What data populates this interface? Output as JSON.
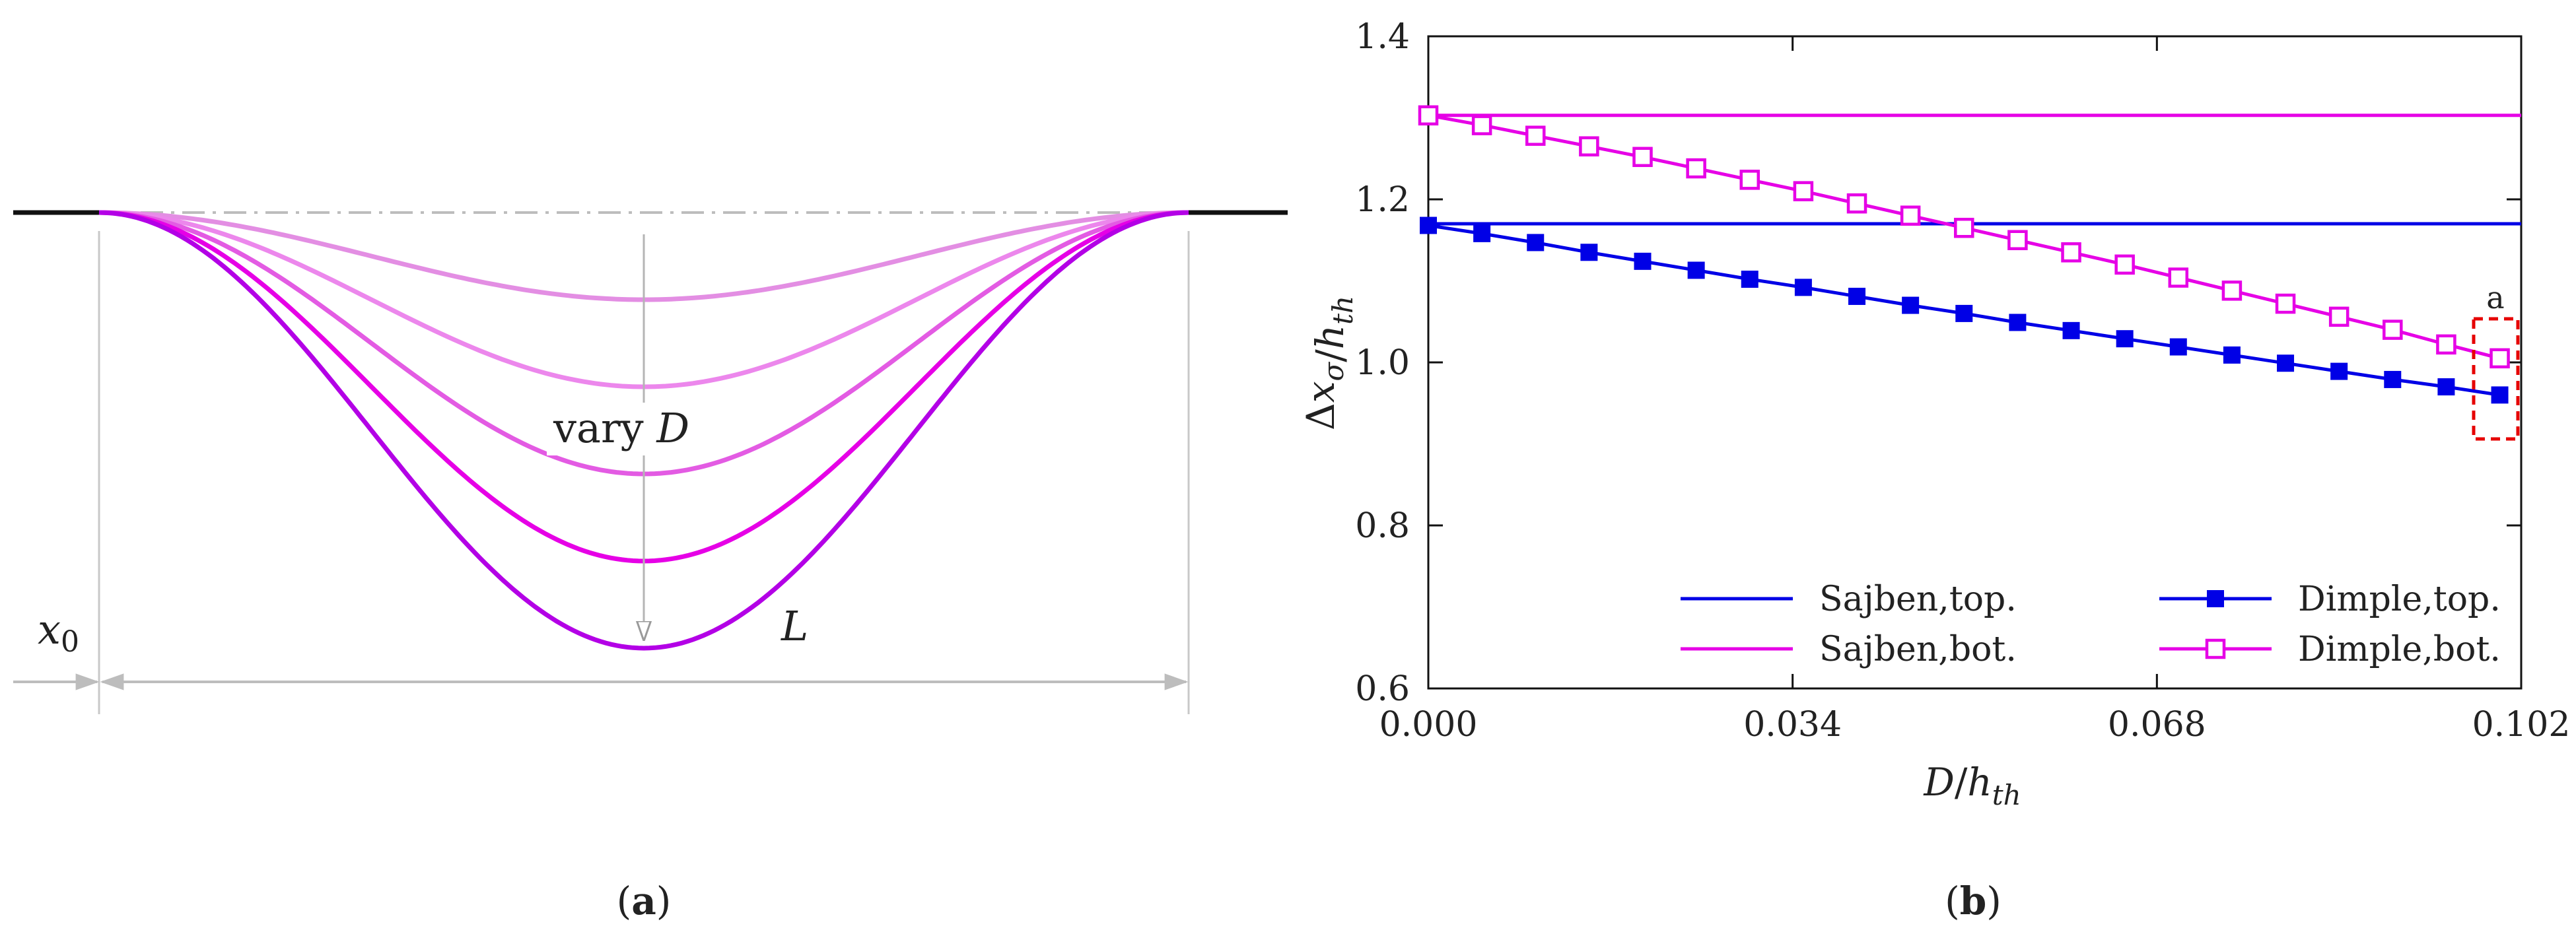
{
  "panel_a": {
    "caption_open": "(",
    "caption_letter": "a",
    "caption_close": ")",
    "label_x0": "x",
    "label_x0_sub": "0",
    "label_vary": "vary ",
    "label_vary_var": "D",
    "label_L": "L",
    "profile_colors": [
      "#e38ee3",
      "#ec87ec",
      "#e35be3",
      "#e600e6",
      "#b300e6"
    ],
    "profile_depths": [
      0.2,
      0.4,
      0.6,
      0.8,
      1.0
    ]
  },
  "panel_b": {
    "caption_open": "(",
    "caption_letter": "b",
    "caption_close": ")",
    "annotation": "a"
  },
  "chart_data": {
    "type": "line",
    "title": "",
    "xlabel": "D/h_th",
    "ylabel": "Δx_σ/h_th",
    "xlim": [
      0.0,
      0.102
    ],
    "ylim": [
      0.6,
      1.4
    ],
    "xticks": [
      0.0,
      0.034,
      0.068,
      0.102
    ],
    "xtick_labels": [
      "0.000",
      "0.034",
      "0.068",
      "0.102"
    ],
    "yticks": [
      0.6,
      0.8,
      1.0,
      1.2,
      1.4
    ],
    "ytick_labels": [
      "0.6",
      "0.8",
      "1.0",
      "1.2",
      "1.4"
    ],
    "grid": false,
    "legend_position": "bottom",
    "series": [
      {
        "name": "Sajben,top.",
        "color": "#0000e6",
        "marker": "none",
        "x": [
          0.0,
          0.102
        ],
        "values": [
          1.17,
          1.17
        ]
      },
      {
        "name": "Sajben,bot.",
        "color": "#e600e6",
        "marker": "none",
        "x": [
          0.0,
          0.102
        ],
        "values": [
          1.303,
          1.303
        ]
      },
      {
        "name": "Dimple,top.",
        "color": "#0000e6",
        "marker": "filled-square",
        "x": [
          0.0,
          0.005,
          0.01,
          0.015,
          0.02,
          0.025,
          0.03,
          0.035,
          0.04,
          0.045,
          0.05,
          0.055,
          0.06,
          0.065,
          0.07,
          0.075,
          0.08,
          0.085,
          0.09,
          0.095,
          0.1
        ],
        "values": [
          1.168,
          1.158,
          1.147,
          1.135,
          1.124,
          1.113,
          1.102,
          1.092,
          1.081,
          1.07,
          1.06,
          1.049,
          1.039,
          1.029,
          1.019,
          1.009,
          0.999,
          0.989,
          0.979,
          0.97,
          0.96
        ]
      },
      {
        "name": "Dimple,bot.",
        "color": "#e600e6",
        "marker": "open-square",
        "x": [
          0.0,
          0.005,
          0.01,
          0.015,
          0.02,
          0.025,
          0.03,
          0.035,
          0.04,
          0.045,
          0.05,
          0.055,
          0.06,
          0.065,
          0.07,
          0.075,
          0.08,
          0.085,
          0.09,
          0.095,
          0.1
        ],
        "values": [
          1.303,
          1.291,
          1.278,
          1.265,
          1.252,
          1.238,
          1.224,
          1.21,
          1.195,
          1.18,
          1.165,
          1.15,
          1.135,
          1.12,
          1.104,
          1.088,
          1.072,
          1.056,
          1.04,
          1.022,
          1.005
        ]
      }
    ]
  }
}
